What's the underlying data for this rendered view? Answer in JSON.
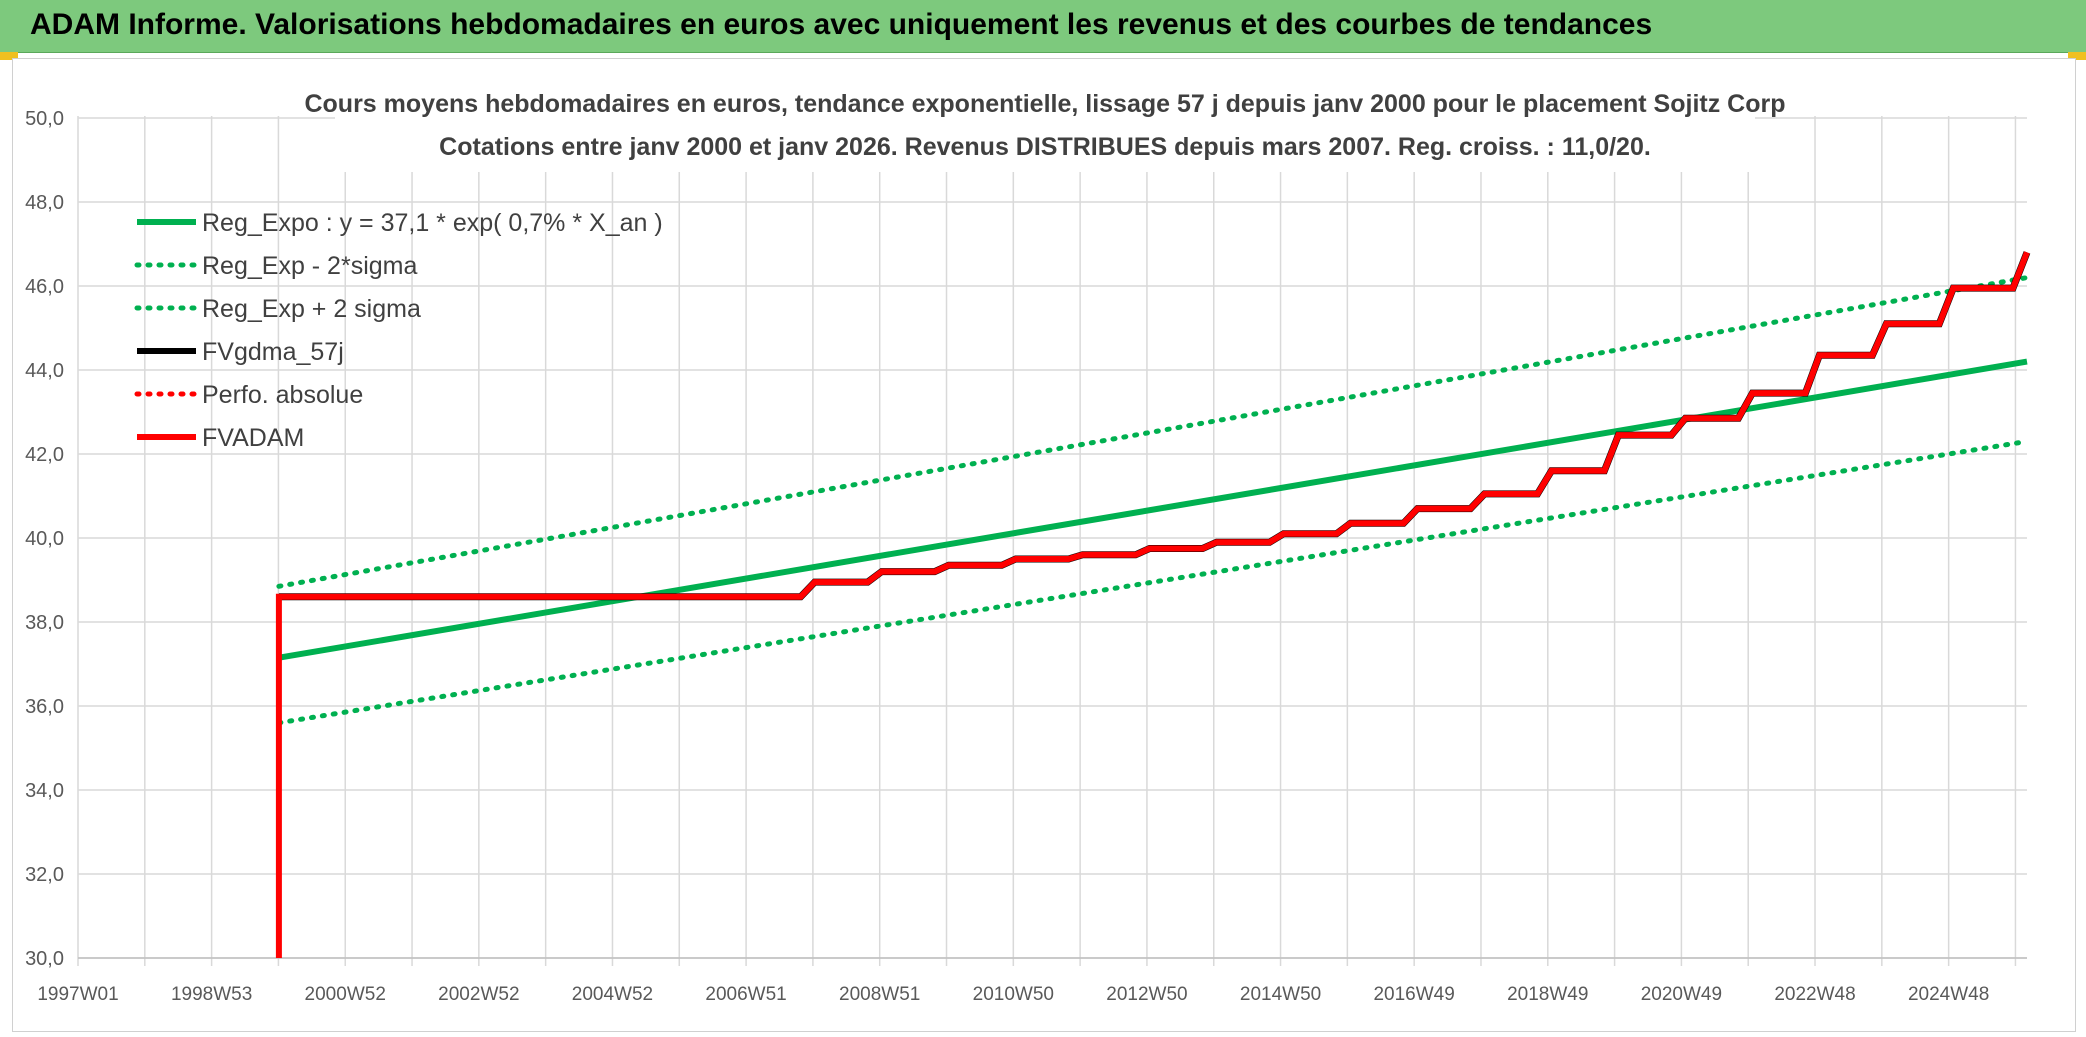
{
  "header": {
    "title": "ADAM Informe. Valorisations hebdomadaires en euros avec uniquement les revenus et des courbes de tendances",
    "background": "#7dc97d"
  },
  "chart_data": {
    "type": "line",
    "title": "Cours moyens hebdomadaires en euros, tendance exponentielle, lissage 57 j depuis janv 2000 pour le placement Sojitz Corp",
    "subtitle": "Cotations entre janv 2000 et janv 2026. Revenus DISTRIBUES depuis mars 2007. Reg. croiss. : 11,0/20.",
    "xlabel": "",
    "ylabel": "",
    "xlim": [
      1997.0,
      2026.1
    ],
    "ylim": [
      30,
      50
    ],
    "y_ticks": [
      "30,0",
      "32,0",
      "34,0",
      "36,0",
      "38,0",
      "40,0",
      "42,0",
      "44,0",
      "46,0",
      "48,0",
      "50,0"
    ],
    "x_tick_labels": [
      "1997W01",
      "1998W53",
      "2000W52",
      "2002W52",
      "2004W52",
      "2006W51",
      "2008W51",
      "2010W50",
      "2012W50",
      "2014W50",
      "2016W49",
      "2018W49",
      "2020W49",
      "2022W48",
      "2024W48"
    ],
    "grid": true,
    "legend_position": "top-left",
    "series": [
      {
        "name": "Reg_Expo : y = 37,1 * exp( 0,7% *  X_an )",
        "color": "#00b050",
        "style": "solid",
        "x": [
          2000.0,
          2026.1
        ],
        "y": [
          37.15,
          44.2
        ]
      },
      {
        "name": "Reg_Exp - 2*sigma",
        "color": "#00b050",
        "style": "dotted",
        "x": [
          2000.0,
          2026.1
        ],
        "y": [
          35.6,
          42.3
        ]
      },
      {
        "name": "Reg_Exp + 2 sigma",
        "color": "#00b050",
        "style": "dotted",
        "x": [
          2000.0,
          2026.1
        ],
        "y": [
          38.85,
          46.2
        ]
      },
      {
        "name": "FVgdma_57j",
        "color": "#000000",
        "style": "solid",
        "x": [
          2000.0,
          2007.25,
          2008.0,
          2009.0,
          2010.0,
          2011.0,
          2012.0,
          2013.0,
          2014.0,
          2015.0,
          2016.0,
          2017.0,
          2018.0,
          2019.0,
          2020.0,
          2021.0,
          2022.0,
          2023.0,
          2024.0,
          2025.0,
          2026.1
        ],
        "y": [
          38.6,
          38.6,
          38.95,
          39.2,
          39.35,
          39.5,
          39.6,
          39.75,
          39.9,
          40.1,
          40.35,
          40.7,
          41.05,
          41.6,
          42.45,
          42.85,
          43.45,
          44.35,
          45.1,
          45.95,
          46.8
        ]
      },
      {
        "name": "Perfo. absolue",
        "color": "#ff0000",
        "style": "dotted",
        "x": [],
        "y": []
      },
      {
        "name": "FVADAM",
        "color": "#ff0000",
        "style": "solid-thick",
        "x": [
          2000.0,
          2000.0,
          2007.25,
          2008.0,
          2009.0,
          2010.0,
          2011.0,
          2012.0,
          2013.0,
          2014.0,
          2015.0,
          2016.0,
          2017.0,
          2018.0,
          2019.0,
          2020.0,
          2021.0,
          2022.0,
          2023.0,
          2024.0,
          2025.0,
          2026.1
        ],
        "y": [
          30.0,
          38.6,
          38.6,
          38.95,
          39.2,
          39.35,
          39.5,
          39.6,
          39.75,
          39.9,
          40.1,
          40.35,
          40.7,
          41.05,
          41.6,
          42.45,
          42.85,
          43.45,
          44.35,
          45.1,
          45.95,
          46.8
        ]
      }
    ]
  }
}
